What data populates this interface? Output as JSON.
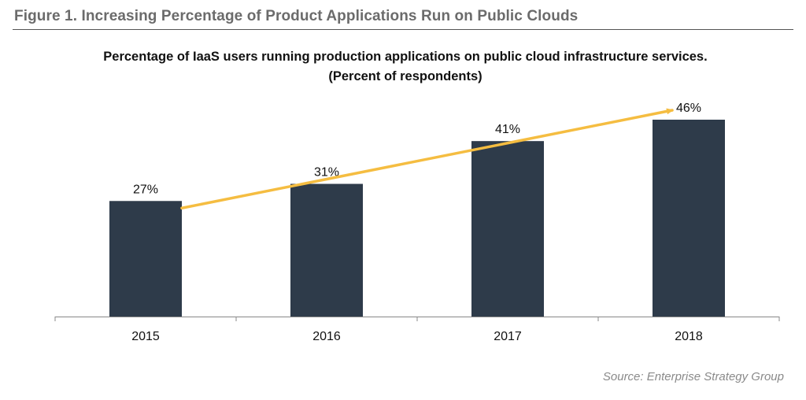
{
  "figure": {
    "title": "Figure 1.  Increasing Percentage of Product Applications Run on Public Clouds",
    "source": "Source: Enterprise Strategy Group"
  },
  "chart_data": {
    "type": "bar",
    "title": "Percentage of IaaS users running production applications on public cloud infrastructure services. (Percent of respondents)",
    "xlabel": "",
    "ylabel": "",
    "categories": [
      "2015",
      "2016",
      "2017",
      "2018"
    ],
    "values": [
      27,
      31,
      41,
      46
    ],
    "data_labels": [
      "27%",
      "31%",
      "41%",
      "46%"
    ],
    "ylim": [
      0,
      55
    ],
    "grid": false,
    "legend": "none",
    "trend_arrow": true,
    "colors": {
      "bar": "#2e3b4a",
      "trend_arrow": "#f5bd41",
      "axis": "#888888"
    }
  }
}
